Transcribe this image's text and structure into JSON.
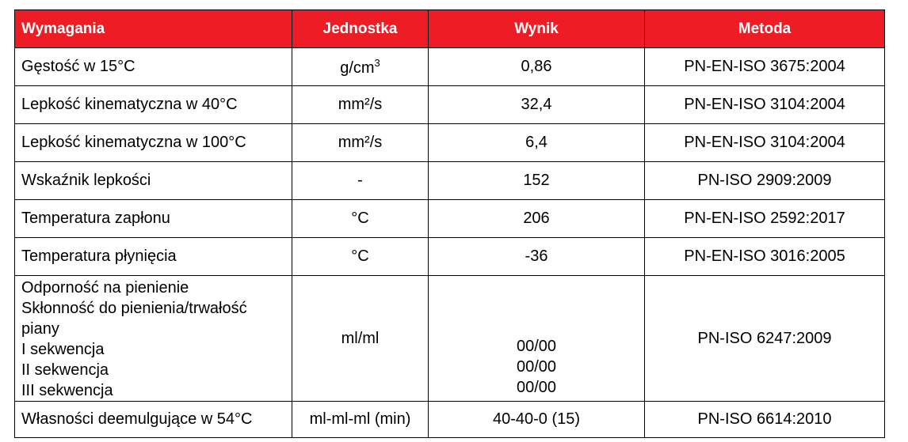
{
  "headers": {
    "requirements": "Wymagania",
    "unit": "Jednostka",
    "result": "Wynik",
    "method": "Metoda"
  },
  "rows": [
    {
      "requirement": "Gęstość w 15°C",
      "unit": "g/cm",
      "unit_sup": "3",
      "result": "0,86",
      "method": "PN-EN-ISO 3675:2004"
    },
    {
      "requirement": "Lepkość kinematyczna w 40°C",
      "unit": "mm²/s",
      "result": "32,4",
      "method": "PN-EN-ISO 3104:2004"
    },
    {
      "requirement": "Lepkość kinematyczna w 100°C",
      "unit": "mm²/s",
      "result": "6,4",
      "method": "PN-EN-ISO 3104:2004"
    },
    {
      "requirement": "Wskaźnik lepkości",
      "unit": "-",
      "result": "152",
      "method": "PN-ISO 2909:2009"
    },
    {
      "requirement": "Temperatura zapłonu",
      "unit": "°C",
      "result": "206",
      "method": "PN-EN-ISO 2592:2017"
    },
    {
      "requirement": "Temperatura płynięcia",
      "unit": "°C",
      "result": "-36",
      "method": "PN-EN-ISO 3016:2005"
    }
  ],
  "foam_row": {
    "requirement_lines": [
      "Odporność na pienienie",
      "Skłonność do pienienia/trwałość",
      "piany",
      "I sekwencja",
      "II sekwencja",
      "III sekwencja"
    ],
    "unit": "ml/ml",
    "results": [
      "00/00",
      "00/00",
      "00/00"
    ],
    "method": "PN-ISO 6247:2009"
  },
  "last_row": {
    "requirement": "Własności deemulgujące w 54°C",
    "unit": "ml-ml-ml (min)",
    "result": "40-40-0 (15)",
    "method": "PN-ISO 6614:2010"
  },
  "colors": {
    "header_background": "#ee1c25",
    "header_text": "#ffffff",
    "border": "#000000"
  }
}
